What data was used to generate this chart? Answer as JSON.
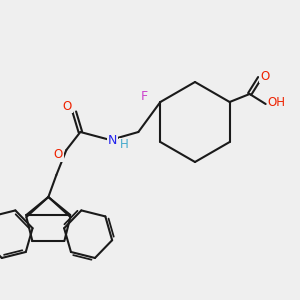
{
  "background_color": "#efefef",
  "figsize": [
    3.0,
    3.0
  ],
  "dpi": 100,
  "colors": {
    "bond": "#1a1a1a",
    "F": "#cc44cc",
    "N": "#2222ee",
    "H_N": "#44aacc",
    "O": "#ee2200",
    "OH": "#ee2200"
  }
}
